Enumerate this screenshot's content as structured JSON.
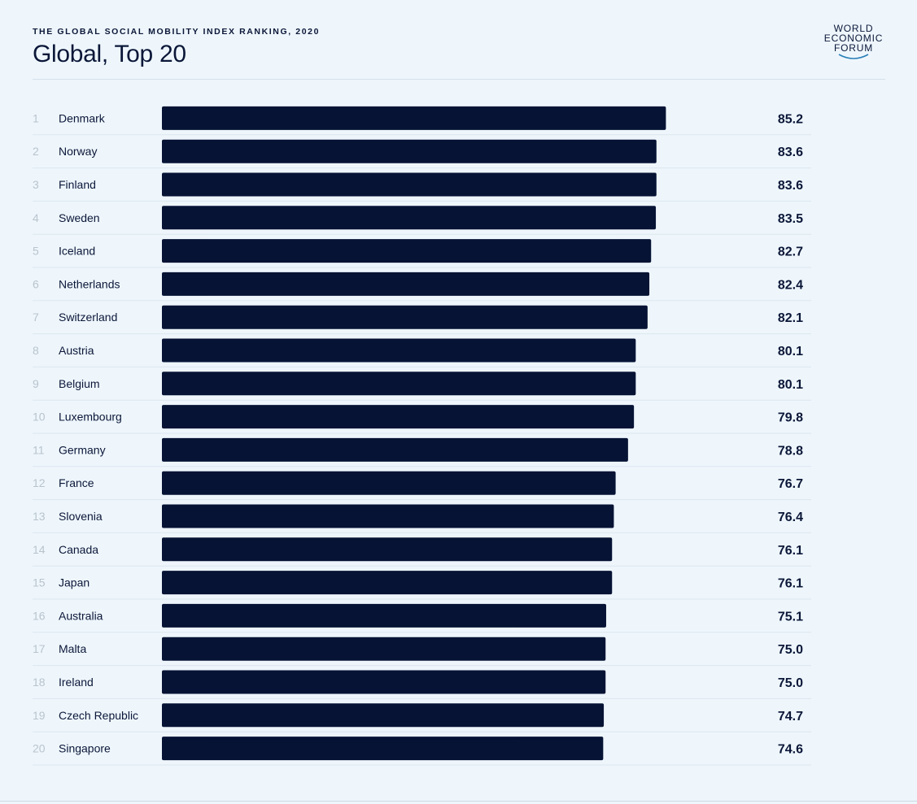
{
  "header": {
    "kicker": "THE GLOBAL SOCIAL MOBILITY INDEX RANKING, 2020",
    "title": "Global, Top 20"
  },
  "logo": {
    "line1": "WORLD",
    "line2": "ECONOMIC",
    "line3": "FORUM"
  },
  "colors": {
    "bar": "#061334",
    "text": "#0b1738",
    "rank": "#b9c3cc",
    "background": "#eef6fc"
  },
  "chart_data": {
    "type": "bar",
    "orientation": "horizontal",
    "ranks": [
      "1",
      "2",
      "3",
      "4",
      "5",
      "6",
      "7",
      "8",
      "9",
      "10",
      "11",
      "12",
      "13",
      "14",
      "15",
      "16",
      "17",
      "18",
      "19",
      "20"
    ],
    "categories": [
      "Denmark",
      "Norway",
      "Finland",
      "Sweden",
      "Iceland",
      "Netherlands",
      "Switzerland",
      "Austria",
      "Belgium",
      "Luxembourg",
      "Germany",
      "France",
      "Slovenia",
      "Canada",
      "Japan",
      "Australia",
      "Malta",
      "Ireland",
      "Czech Republic",
      "Singapore"
    ],
    "values": [
      85.2,
      83.6,
      83.6,
      83.5,
      82.7,
      82.4,
      82.1,
      80.1,
      80.1,
      79.8,
      78.8,
      76.7,
      76.4,
      76.1,
      76.1,
      75.1,
      75.0,
      75.0,
      74.7,
      74.6
    ],
    "value_labels": [
      "85.2",
      "83.6",
      "83.6",
      "83.5",
      "82.7",
      "82.4",
      "82.1",
      "80.1",
      "80.1",
      "79.8",
      "78.8",
      "76.7",
      "76.4",
      "76.1",
      "76.1",
      "75.1",
      "75.0",
      "75.0",
      "74.7",
      "74.6"
    ],
    "xlim": [
      0,
      100
    ],
    "grid": false,
    "legend": "none"
  }
}
